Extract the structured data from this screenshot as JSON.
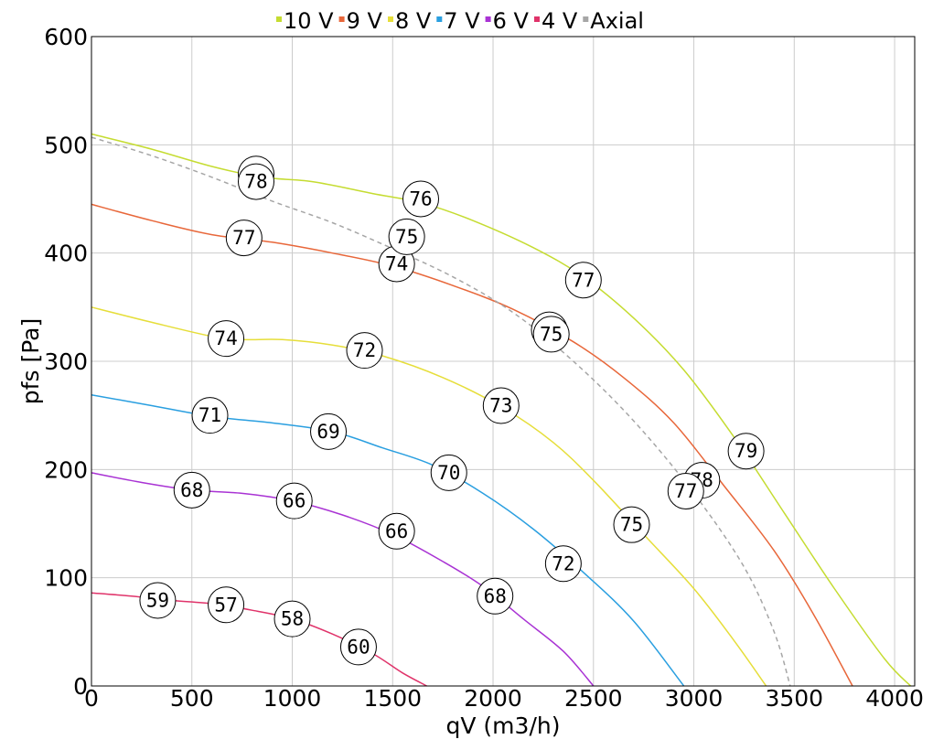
{
  "chart_data": {
    "type": "line",
    "title": "",
    "xlabel": "qV (m3/h)",
    "ylabel": "pfs [Pa]",
    "xlim": [
      0,
      4100
    ],
    "ylim": [
      0,
      600
    ],
    "xticks": [
      0,
      500,
      1000,
      1500,
      2000,
      2500,
      3000,
      3500,
      4000
    ],
    "yticks": [
      0,
      100,
      200,
      300,
      400,
      500,
      600
    ],
    "grid": true,
    "legend_position": "top-center",
    "series": [
      {
        "name": "10 V",
        "color": "#c5dc31",
        "dash": false,
        "points": [
          [
            0,
            510
          ],
          [
            300,
            496
          ],
          [
            600,
            480
          ],
          [
            850,
            470
          ],
          [
            1100,
            466
          ],
          [
            1400,
            455
          ],
          [
            1650,
            446
          ],
          [
            1900,
            430
          ],
          [
            2200,
            405
          ],
          [
            2450,
            378
          ],
          [
            2700,
            340
          ],
          [
            2950,
            292
          ],
          [
            3200,
            230
          ],
          [
            3450,
            160
          ],
          [
            3700,
            90
          ],
          [
            3950,
            25
          ],
          [
            4080,
            0
          ]
        ],
        "labels": [
          {
            "x": 820,
            "y": 473,
            "text": "78"
          },
          {
            "x": 1640,
            "y": 450,
            "text": "76"
          },
          {
            "x": 2450,
            "y": 375,
            "text": "77"
          },
          {
            "x": 3260,
            "y": 217,
            "text": "79"
          }
        ]
      },
      {
        "name": "9 V",
        "color": "#e8673a",
        "dash": false,
        "points": [
          [
            0,
            445
          ],
          [
            300,
            430
          ],
          [
            600,
            417
          ],
          [
            900,
            410
          ],
          [
            1200,
            400
          ],
          [
            1500,
            388
          ],
          [
            1800,
            370
          ],
          [
            2100,
            348
          ],
          [
            2400,
            318
          ],
          [
            2650,
            285
          ],
          [
            2900,
            243
          ],
          [
            3150,
            185
          ],
          [
            3400,
            125
          ],
          [
            3600,
            65
          ],
          [
            3790,
            0
          ]
        ],
        "labels": [
          {
            "x": 760,
            "y": 414,
            "text": "77"
          },
          {
            "x": 1520,
            "y": 390,
            "text": "74"
          },
          {
            "x": 2280,
            "y": 329,
            "text": "75"
          },
          {
            "x": 3040,
            "y": 190,
            "text": "78"
          }
        ]
      },
      {
        "name": "8 V",
        "color": "#e6de3a",
        "dash": false,
        "points": [
          [
            0,
            350
          ],
          [
            300,
            336
          ],
          [
            600,
            323
          ],
          [
            750,
            320
          ],
          [
            950,
            320
          ],
          [
            1200,
            315
          ],
          [
            1450,
            305
          ],
          [
            1750,
            285
          ],
          [
            2050,
            257
          ],
          [
            2300,
            225
          ],
          [
            2500,
            190
          ],
          [
            2750,
            140
          ],
          [
            3000,
            90
          ],
          [
            3200,
            42
          ],
          [
            3360,
            0
          ]
        ],
        "labels": [
          {
            "x": 670,
            "y": 321,
            "text": "74"
          },
          {
            "x": 1360,
            "y": 310,
            "text": "72"
          },
          {
            "x": 2040,
            "y": 259,
            "text": "73"
          },
          {
            "x": 2690,
            "y": 149,
            "text": "75"
          }
        ]
      },
      {
        "name": "7 V",
        "color": "#2a9fe0",
        "dash": false,
        "points": [
          [
            0,
            269
          ],
          [
            300,
            259
          ],
          [
            600,
            249
          ],
          [
            900,
            243
          ],
          [
            1200,
            235
          ],
          [
            1450,
            220
          ],
          [
            1700,
            204
          ],
          [
            1950,
            178
          ],
          [
            2200,
            145
          ],
          [
            2450,
            105
          ],
          [
            2700,
            60
          ],
          [
            2950,
            0
          ]
        ],
        "labels": [
          {
            "x": 590,
            "y": 250,
            "text": "71"
          },
          {
            "x": 1180,
            "y": 235,
            "text": "69"
          },
          {
            "x": 1780,
            "y": 197,
            "text": "70"
          },
          {
            "x": 2350,
            "y": 113,
            "text": "72"
          }
        ]
      },
      {
        "name": "6 V",
        "color": "#a933d4",
        "dash": false,
        "points": [
          [
            0,
            197
          ],
          [
            250,
            188
          ],
          [
            500,
            181
          ],
          [
            750,
            178
          ],
          [
            1000,
            171
          ],
          [
            1250,
            158
          ],
          [
            1500,
            140
          ],
          [
            1750,
            115
          ],
          [
            1950,
            92
          ],
          [
            2150,
            62
          ],
          [
            2350,
            32
          ],
          [
            2500,
            0
          ]
        ],
        "labels": [
          {
            "x": 500,
            "y": 181,
            "text": "68"
          },
          {
            "x": 1010,
            "y": 171,
            "text": "66"
          },
          {
            "x": 1520,
            "y": 143,
            "text": "66"
          },
          {
            "x": 2010,
            "y": 83,
            "text": "68"
          }
        ]
      },
      {
        "name": "4 V",
        "color": "#e0336a",
        "dash": false,
        "points": [
          [
            0,
            86
          ],
          [
            200,
            83
          ],
          [
            400,
            79
          ],
          [
            600,
            76
          ],
          [
            800,
            70
          ],
          [
            1000,
            62
          ],
          [
            1200,
            48
          ],
          [
            1400,
            30
          ],
          [
            1550,
            12
          ],
          [
            1670,
            0
          ]
        ],
        "labels": [
          {
            "x": 330,
            "y": 79,
            "text": "59"
          },
          {
            "x": 670,
            "y": 75,
            "text": "57"
          },
          {
            "x": 1000,
            "y": 62,
            "text": "58"
          },
          {
            "x": 1330,
            "y": 36,
            "text": "60"
          }
        ]
      },
      {
        "name": "Axial",
        "color": "#a6a6a6",
        "dash": true,
        "points": [
          [
            0,
            507
          ],
          [
            300,
            490
          ],
          [
            600,
            470
          ],
          [
            900,
            448
          ],
          [
            1200,
            428
          ],
          [
            1500,
            404
          ],
          [
            1800,
            378
          ],
          [
            2100,
            345
          ],
          [
            2400,
            300
          ],
          [
            2700,
            245
          ],
          [
            3000,
            178
          ],
          [
            3250,
            110
          ],
          [
            3400,
            50
          ],
          [
            3480,
            0
          ]
        ],
        "labels": [
          {
            "x": 820,
            "y": 466,
            "text": "78"
          },
          {
            "x": 1570,
            "y": 415,
            "text": "75"
          },
          {
            "x": 2290,
            "y": 325,
            "text": "75"
          },
          {
            "x": 2960,
            "y": 180,
            "text": "77"
          }
        ]
      }
    ]
  }
}
